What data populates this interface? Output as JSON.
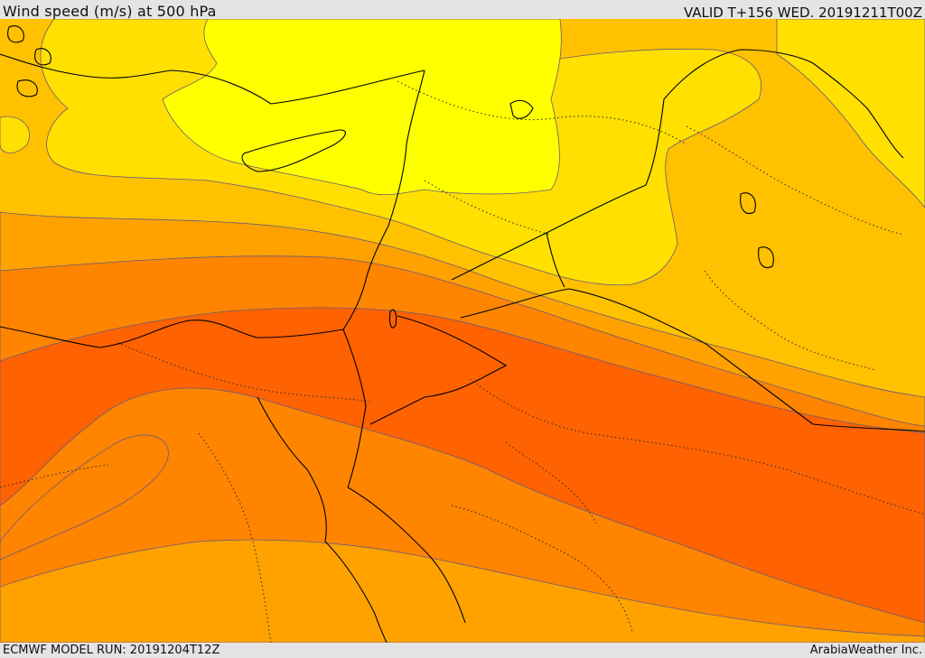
{
  "header": {
    "title": "Wind speed (m/s) at 500 hPa",
    "valid": "VALID T+156 WED. 20191211T00Z"
  },
  "footer": {
    "model_run": "ECMWF MODEL RUN: 20191204T12Z",
    "credit": "ArabiaWeather Inc."
  },
  "colors": {
    "band_1": "#ffff00",
    "band_2": "#ffe000",
    "band_3": "#ffc100",
    "band_4": "#ffa200",
    "band_5": "#ff8400",
    "band_6": "#ff6200",
    "contour": "#6b5a78",
    "coast": "#000000"
  }
}
